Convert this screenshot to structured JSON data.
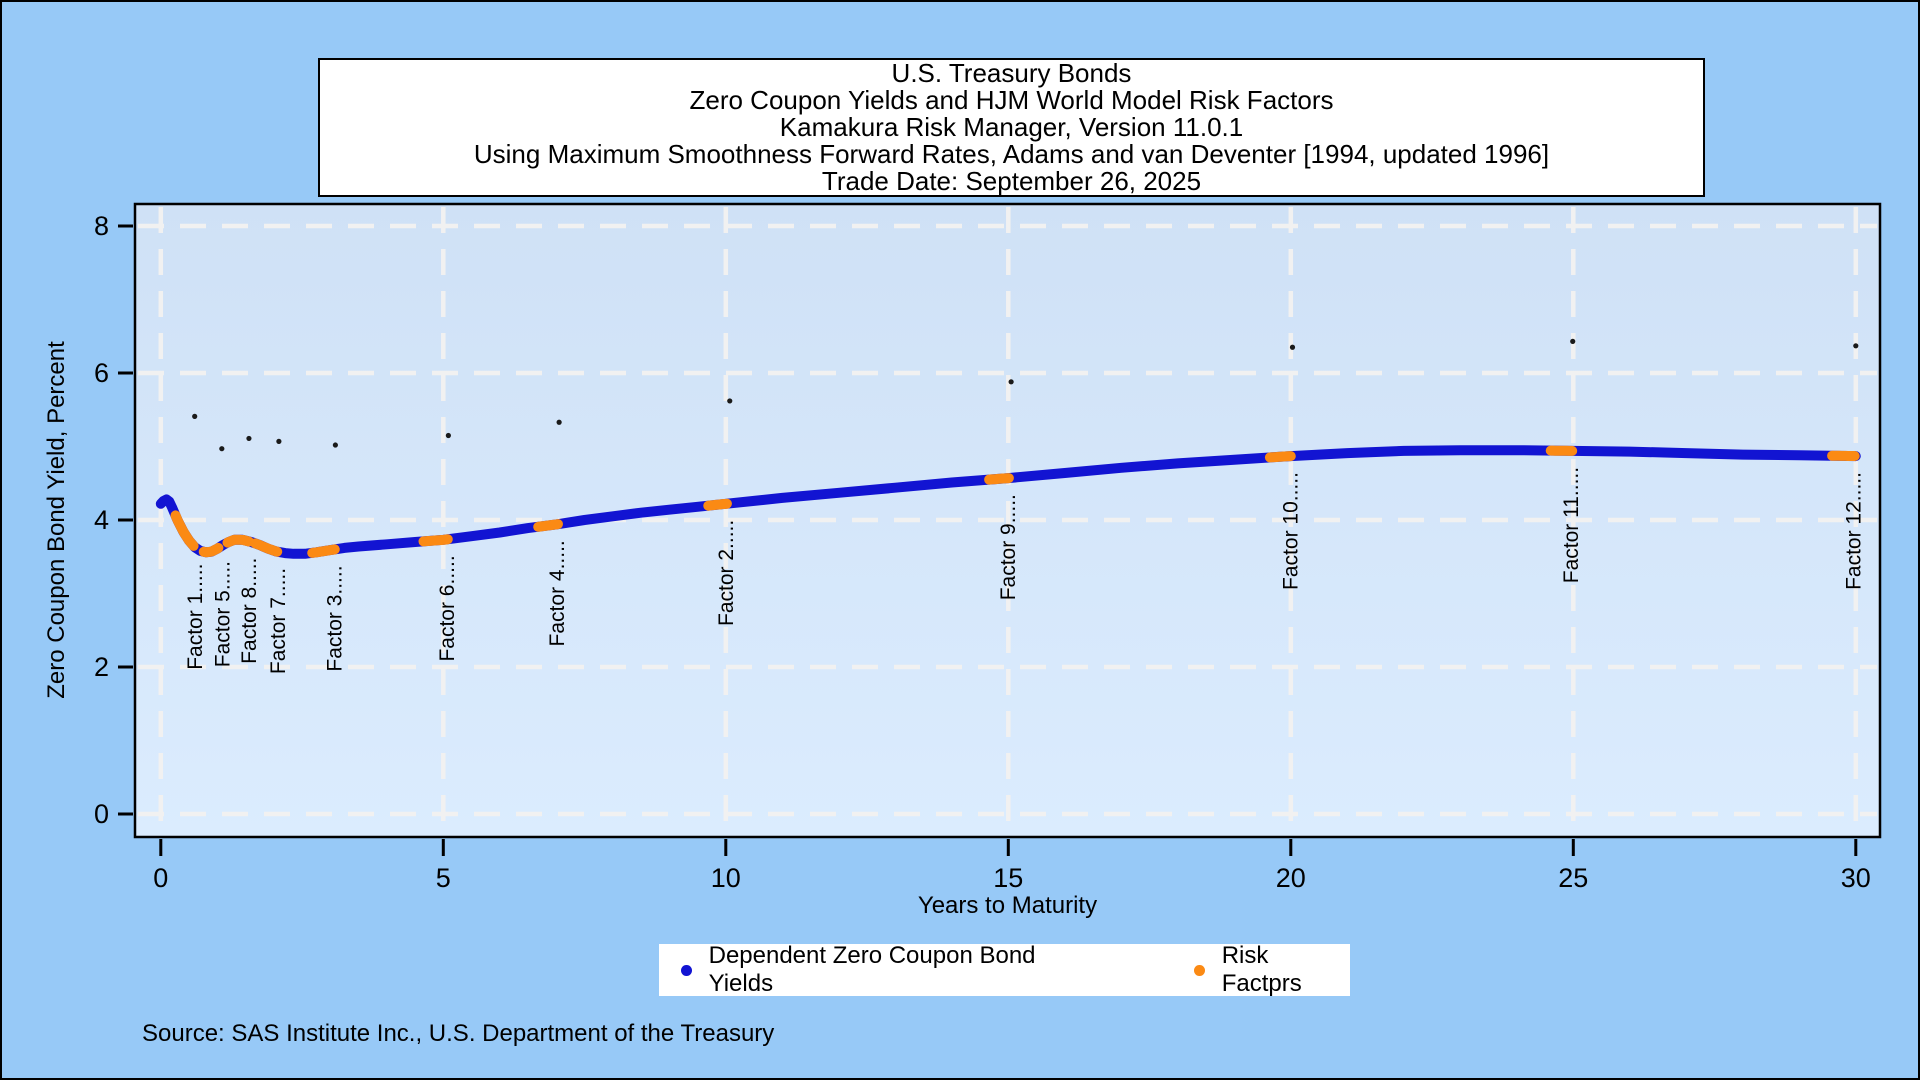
{
  "title_box": {
    "lines": [
      "U.S. Treasury Bonds",
      "Zero Coupon Yields and HJM World Model Risk Factors",
      "Kamakura Risk Manager, Version 11.0.1",
      "Using Maximum Smoothness Forward Rates, Adams and van Deventer [1994, updated 1996]",
      "Trade Date: September 26, 2025"
    ]
  },
  "source_note": "Source: SAS Institute Inc., U.S. Department of the Treasury",
  "legend": {
    "items": [
      {
        "label": "Dependent Zero Coupon Bond Yields",
        "color": "#1214d2"
      },
      {
        "label": "Risk Factprs",
        "color": "#fb8a14"
      }
    ]
  },
  "colors": {
    "background": "#97c9f7",
    "wall_top": "#cfe1f6",
    "wall_bottom": "#dbecfe",
    "grid": "#f1f1f1",
    "curve_blue": "#1214d2",
    "risk_orange": "#fb8a14",
    "axis_black": "#000000",
    "speck": "#1a1a1a",
    "text": "#000000"
  },
  "chart_data": {
    "type": "line",
    "title": "U.S. Treasury Bonds — Zero Coupon Yields and HJM World Model Risk Factors",
    "xlabel": "Years to Maturity",
    "ylabel": "Zero Coupon Bond Yield, Percent",
    "x_axis": {
      "label": "Years to Maturity",
      "ticks": [
        0,
        5,
        10,
        15,
        20,
        25,
        30
      ],
      "range": [
        0,
        30
      ]
    },
    "y_axis": {
      "label": "Zero Coupon Bond Yield, Percent",
      "ticks": [
        0,
        2,
        4,
        6,
        8
      ],
      "range": [
        0,
        8.6
      ]
    },
    "grid": true,
    "legend_position": "bottom",
    "series": [
      {
        "name": "Dependent Zero Coupon Bond Yields",
        "type": "line",
        "color": "#1214d2",
        "points": [
          [
            0,
            4.22
          ],
          [
            0.05,
            4.26
          ],
          [
            0.1,
            4.28
          ],
          [
            0.15,
            4.25
          ],
          [
            0.2,
            4.17
          ],
          [
            0.25,
            4.08
          ],
          [
            0.3,
            3.99
          ],
          [
            0.4,
            3.84
          ],
          [
            0.5,
            3.72
          ],
          [
            0.6,
            3.63
          ],
          [
            0.7,
            3.58
          ],
          [
            0.8,
            3.56
          ],
          [
            0.9,
            3.57
          ],
          [
            1.0,
            3.61
          ],
          [
            1.1,
            3.66
          ],
          [
            1.2,
            3.7
          ],
          [
            1.3,
            3.73
          ],
          [
            1.45,
            3.73
          ],
          [
            1.6,
            3.7
          ],
          [
            1.75,
            3.66
          ],
          [
            1.9,
            3.61
          ],
          [
            2.05,
            3.57
          ],
          [
            2.2,
            3.55
          ],
          [
            2.35,
            3.54
          ],
          [
            2.55,
            3.54
          ],
          [
            2.75,
            3.56
          ],
          [
            3.0,
            3.59
          ],
          [
            3.25,
            3.62
          ],
          [
            3.5,
            3.64
          ],
          [
            4.0,
            3.67
          ],
          [
            4.5,
            3.7
          ],
          [
            5.0,
            3.73
          ],
          [
            5.5,
            3.78
          ],
          [
            6.0,
            3.83
          ],
          [
            6.5,
            3.89
          ],
          [
            7.0,
            3.94
          ],
          [
            7.5,
            4.0
          ],
          [
            8.0,
            4.05
          ],
          [
            8.5,
            4.1
          ],
          [
            9.0,
            4.14
          ],
          [
            9.5,
            4.18
          ],
          [
            10.0,
            4.22
          ],
          [
            10.5,
            4.26
          ],
          [
            11.0,
            4.3
          ],
          [
            12.0,
            4.37
          ],
          [
            13.0,
            4.44
          ],
          [
            14.0,
            4.51
          ],
          [
            15.0,
            4.57
          ],
          [
            16.0,
            4.64
          ],
          [
            17.0,
            4.71
          ],
          [
            18.0,
            4.77
          ],
          [
            19.0,
            4.82
          ],
          [
            20.0,
            4.87
          ],
          [
            21.0,
            4.91
          ],
          [
            22.0,
            4.94
          ],
          [
            23.0,
            4.95
          ],
          [
            24.0,
            4.95
          ],
          [
            25.0,
            4.94
          ],
          [
            26.0,
            4.93
          ],
          [
            27.0,
            4.91
          ],
          [
            28.0,
            4.89
          ],
          [
            29.0,
            4.88
          ],
          [
            30.0,
            4.87
          ]
        ]
      },
      {
        "name": "Risk Factprs",
        "type": "line-segments-overlay",
        "color": "#fb8a14",
        "segments": [
          [
            0.26,
            0.58
          ],
          [
            0.76,
            1.02
          ],
          [
            1.18,
            1.56
          ],
          [
            1.67,
            2.06
          ],
          [
            2.68,
            3.08
          ],
          [
            4.65,
            5.08
          ],
          [
            6.68,
            7.03
          ],
          [
            9.69,
            10.02
          ],
          [
            14.66,
            15.01
          ],
          [
            19.63,
            20.0
          ],
          [
            24.6,
            24.98
          ],
          [
            29.58,
            29.98
          ]
        ]
      }
    ],
    "factor_labels": [
      {
        "label": "Factor 1",
        "x": 0.61
      },
      {
        "label": "Factor 5",
        "x": 1.1
      },
      {
        "label": "Factor 8",
        "x": 1.57
      },
      {
        "label": "Factor 7",
        "x": 2.08
      },
      {
        "label": "Factor 3",
        "x": 3.08
      },
      {
        "label": "Factor 6",
        "x": 5.07
      },
      {
        "label": "Factor 4",
        "x": 7.02
      },
      {
        "label": "Factor 2",
        "x": 10.01
      },
      {
        "label": "Factor 9",
        "x": 15.0
      },
      {
        "label": "Factor 10",
        "x": 20.0
      },
      {
        "label": "Factor 11",
        "x": 24.97
      },
      {
        "label": "Factor 12",
        "x": 29.97
      }
    ],
    "leader_dots": ".....",
    "stray_points": [
      [
        0.6,
        5.41
      ],
      [
        1.08,
        4.97
      ],
      [
        1.56,
        5.11
      ],
      [
        2.09,
        5.07
      ],
      [
        3.09,
        5.02
      ],
      [
        5.09,
        5.15
      ],
      [
        7.05,
        5.33
      ],
      [
        10.07,
        5.62
      ],
      [
        15.05,
        5.88
      ],
      [
        20.03,
        6.35
      ],
      [
        24.99,
        6.43
      ],
      [
        30.0,
        6.37
      ]
    ]
  }
}
